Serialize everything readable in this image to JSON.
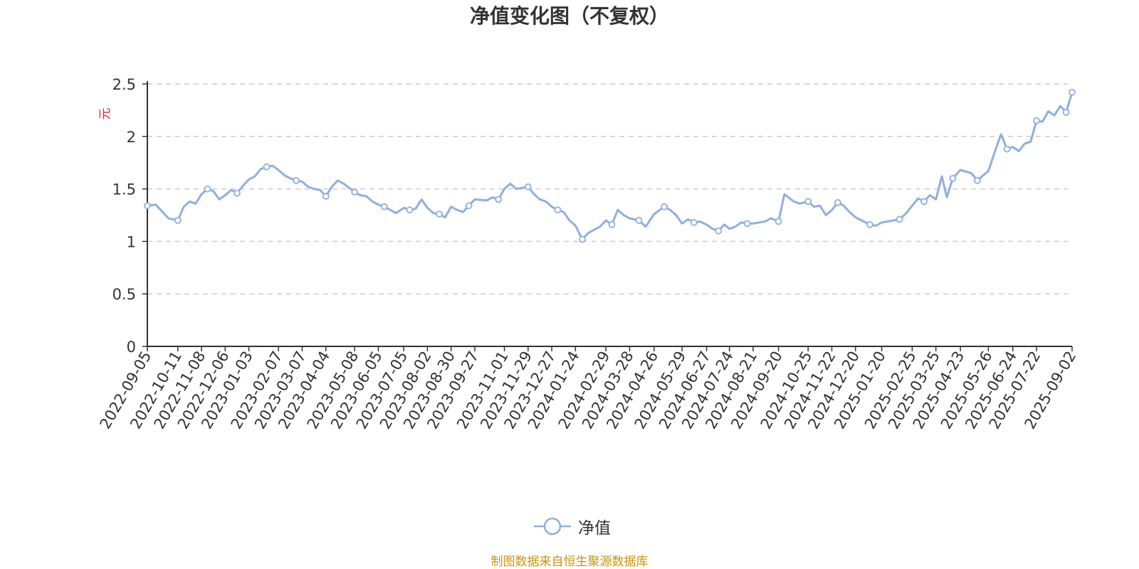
{
  "title": "净值变化图（不复权）",
  "source_note": "制图数据来自恒生聚源数据库",
  "colors": {
    "series": "#8eb0de",
    "ylabel": "#e02424",
    "source": "#c8960a",
    "grid": "#cccccc",
    "axis": "#333333"
  },
  "legend": {
    "label": "净值",
    "icon": "circle-line-marker-icon"
  },
  "chart_data": {
    "type": "line",
    "title": "净值变化图（不复权）",
    "xlabel": "",
    "ylabel": "元",
    "ylim": [
      0,
      2.5
    ],
    "yticks": [
      "0",
      "0.5",
      "1",
      "1.5",
      "2",
      "2.5"
    ],
    "grid": "horizontal-dashed",
    "legend_position": "bottom-center",
    "x_tick_labels": [
      "2022-09-05",
      "2022-10-11",
      "2022-11-08",
      "2022-12-06",
      "2023-01-03",
      "2023-02-07",
      "2023-03-07",
      "2023-04-04",
      "2023-05-08",
      "2023-06-05",
      "2023-07-05",
      "2023-08-02",
      "2023-08-30",
      "2023-09-27",
      "2023-11-01",
      "2023-11-29",
      "2023-12-27",
      "2024-01-24",
      "2024-02-29",
      "2024-03-28",
      "2024-04-26",
      "2024-05-29",
      "2024-06-27",
      "2024-07-24",
      "2024-08-21",
      "2024-09-20",
      "2024-10-25",
      "2024-11-22",
      "2024-12-20",
      "2025-01-20",
      "2025-02-25",
      "2025-03-25",
      "2025-04-23",
      "2025-05-26",
      "2025-06-24",
      "2025-07-22",
      "2025-09-02"
    ],
    "series": [
      {
        "name": "净值",
        "points": [
          [
            "2022-09-05",
            1.34
          ],
          [
            "2022-09-15",
            1.35
          ],
          [
            "2022-09-23",
            1.28
          ],
          [
            "2022-09-30",
            1.22
          ],
          [
            "2022-10-11",
            1.2
          ],
          [
            "2022-10-18",
            1.33
          ],
          [
            "2022-10-25",
            1.38
          ],
          [
            "2022-11-01",
            1.36
          ],
          [
            "2022-11-08",
            1.45
          ],
          [
            "2022-11-15",
            1.5
          ],
          [
            "2022-11-22",
            1.48
          ],
          [
            "2022-11-29",
            1.4
          ],
          [
            "2022-12-06",
            1.44
          ],
          [
            "2022-12-13",
            1.49
          ],
          [
            "2022-12-20",
            1.46
          ],
          [
            "2022-12-27",
            1.53
          ],
          [
            "2023-01-03",
            1.59
          ],
          [
            "2023-01-10",
            1.62
          ],
          [
            "2023-01-17",
            1.69
          ],
          [
            "2023-01-24",
            1.71
          ],
          [
            "2023-01-31",
            1.72
          ],
          [
            "2023-02-07",
            1.68
          ],
          [
            "2023-02-14",
            1.63
          ],
          [
            "2023-02-21",
            1.6
          ],
          [
            "2023-02-28",
            1.58
          ],
          [
            "2023-03-07",
            1.57
          ],
          [
            "2023-03-14",
            1.52
          ],
          [
            "2023-03-21",
            1.5
          ],
          [
            "2023-03-28",
            1.49
          ],
          [
            "2023-04-04",
            1.43
          ],
          [
            "2023-04-11",
            1.52
          ],
          [
            "2023-04-18",
            1.58
          ],
          [
            "2023-04-25",
            1.55
          ],
          [
            "2023-05-08",
            1.47
          ],
          [
            "2023-05-15",
            1.44
          ],
          [
            "2023-05-22",
            1.43
          ],
          [
            "2023-05-29",
            1.38
          ],
          [
            "2023-06-05",
            1.35
          ],
          [
            "2023-06-12",
            1.33
          ],
          [
            "2023-06-19",
            1.3
          ],
          [
            "2023-06-26",
            1.27
          ],
          [
            "2023-07-05",
            1.32
          ],
          [
            "2023-07-12",
            1.3
          ],
          [
            "2023-07-19",
            1.31
          ],
          [
            "2023-07-26",
            1.4
          ],
          [
            "2023-08-02",
            1.32
          ],
          [
            "2023-08-09",
            1.27
          ],
          [
            "2023-08-16",
            1.26
          ],
          [
            "2023-08-23",
            1.23
          ],
          [
            "2023-08-30",
            1.33
          ],
          [
            "2023-09-06",
            1.3
          ],
          [
            "2023-09-13",
            1.28
          ],
          [
            "2023-09-20",
            1.34
          ],
          [
            "2023-09-27",
            1.4
          ],
          [
            "2023-10-11",
            1.39
          ],
          [
            "2023-10-18",
            1.42
          ],
          [
            "2023-10-25",
            1.4
          ],
          [
            "2023-11-01",
            1.5
          ],
          [
            "2023-11-08",
            1.55
          ],
          [
            "2023-11-15",
            1.5
          ],
          [
            "2023-11-22",
            1.51
          ],
          [
            "2023-11-29",
            1.52
          ],
          [
            "2023-12-06",
            1.45
          ],
          [
            "2023-12-13",
            1.4
          ],
          [
            "2023-12-20",
            1.38
          ],
          [
            "2023-12-27",
            1.33
          ],
          [
            "2024-01-03",
            1.3
          ],
          [
            "2024-01-10",
            1.28
          ],
          [
            "2024-01-17",
            1.2
          ],
          [
            "2024-01-24",
            1.15
          ],
          [
            "2024-02-01",
            1.02
          ],
          [
            "2024-02-08",
            1.08
          ],
          [
            "2024-02-22",
            1.14
          ],
          [
            "2024-02-29",
            1.2
          ],
          [
            "2024-03-07",
            1.16
          ],
          [
            "2024-03-14",
            1.3
          ],
          [
            "2024-03-21",
            1.25
          ],
          [
            "2024-03-28",
            1.22
          ],
          [
            "2024-04-08",
            1.2
          ],
          [
            "2024-04-16",
            1.14
          ],
          [
            "2024-04-26",
            1.26
          ],
          [
            "2024-05-08",
            1.33
          ],
          [
            "2024-05-15",
            1.3
          ],
          [
            "2024-05-22",
            1.25
          ],
          [
            "2024-05-29",
            1.17
          ],
          [
            "2024-06-05",
            1.21
          ],
          [
            "2024-06-12",
            1.18
          ],
          [
            "2024-06-19",
            1.19
          ],
          [
            "2024-06-27",
            1.16
          ],
          [
            "2024-07-04",
            1.12
          ],
          [
            "2024-07-11",
            1.1
          ],
          [
            "2024-07-18",
            1.16
          ],
          [
            "2024-07-24",
            1.12
          ],
          [
            "2024-07-31",
            1.14
          ],
          [
            "2024-08-07",
            1.18
          ],
          [
            "2024-08-14",
            1.17
          ],
          [
            "2024-08-21",
            1.17
          ],
          [
            "2024-08-28",
            1.18
          ],
          [
            "2024-09-04",
            1.19
          ],
          [
            "2024-09-11",
            1.22
          ],
          [
            "2024-09-20",
            1.19
          ],
          [
            "2024-09-27",
            1.45
          ],
          [
            "2024-10-08",
            1.38
          ],
          [
            "2024-10-15",
            1.36
          ],
          [
            "2024-10-25",
            1.38
          ],
          [
            "2024-11-01",
            1.33
          ],
          [
            "2024-11-08",
            1.34
          ],
          [
            "2024-11-15",
            1.25
          ],
          [
            "2024-11-22",
            1.3
          ],
          [
            "2024-11-29",
            1.37
          ],
          [
            "2024-12-06",
            1.34
          ],
          [
            "2024-12-13",
            1.28
          ],
          [
            "2024-12-20",
            1.23
          ],
          [
            "2024-12-27",
            1.2
          ],
          [
            "2025-01-06",
            1.16
          ],
          [
            "2025-01-13",
            1.15
          ],
          [
            "2025-01-20",
            1.18
          ],
          [
            "2025-01-27",
            1.19
          ],
          [
            "2025-02-10",
            1.21
          ],
          [
            "2025-02-17",
            1.26
          ],
          [
            "2025-02-25",
            1.34
          ],
          [
            "2025-03-04",
            1.41
          ],
          [
            "2025-03-11",
            1.38
          ],
          [
            "2025-03-18",
            1.44
          ],
          [
            "2025-03-25",
            1.4
          ],
          [
            "2025-04-01",
            1.62
          ],
          [
            "2025-04-07",
            1.42
          ],
          [
            "2025-04-14",
            1.6
          ],
          [
            "2025-04-23",
            1.68
          ],
          [
            "2025-05-06",
            1.65
          ],
          [
            "2025-05-13",
            1.58
          ],
          [
            "2025-05-20",
            1.63
          ],
          [
            "2025-05-26",
            1.67
          ],
          [
            "2025-06-03",
            1.86
          ],
          [
            "2025-06-10",
            2.02
          ],
          [
            "2025-06-17",
            1.88
          ],
          [
            "2025-06-24",
            1.9
          ],
          [
            "2025-07-01",
            1.86
          ],
          [
            "2025-07-08",
            1.93
          ],
          [
            "2025-07-15",
            1.95
          ],
          [
            "2025-07-22",
            2.15
          ],
          [
            "2025-07-29",
            2.14
          ],
          [
            "2025-08-05",
            2.24
          ],
          [
            "2025-08-12",
            2.2
          ],
          [
            "2025-08-19",
            2.29
          ],
          [
            "2025-08-26",
            2.23
          ],
          [
            "2025-09-02",
            2.42
          ]
        ]
      }
    ]
  }
}
